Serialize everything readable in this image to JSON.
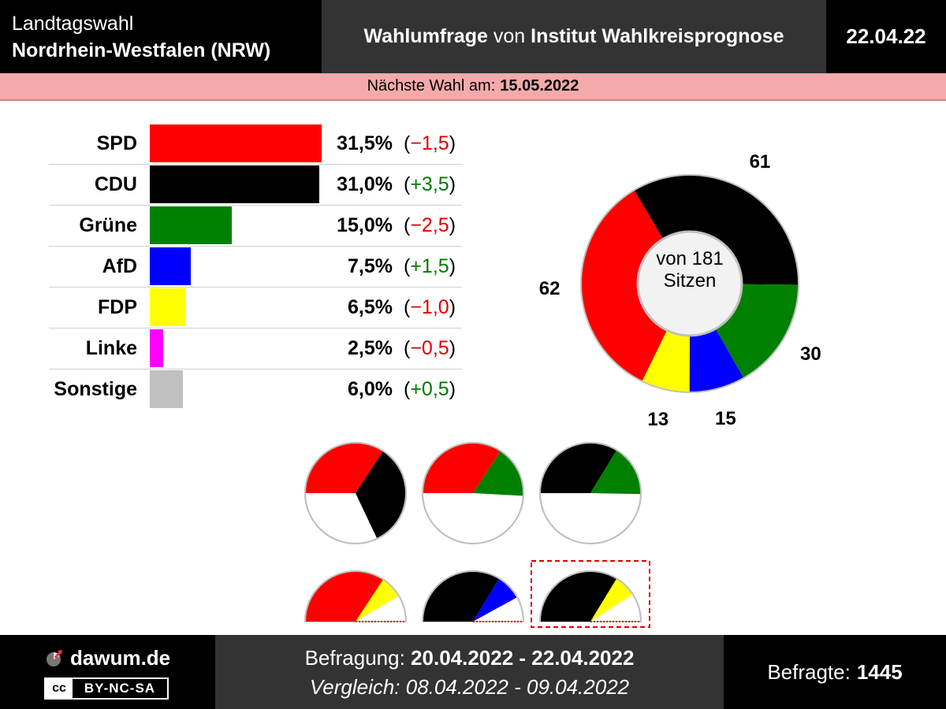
{
  "header": {
    "title_line1": "Landtagswahl",
    "title_line2": "Nordrhein-Westfalen (NRW)",
    "poll_bold1": "Wahlumfrage",
    "poll_connector": "von",
    "poll_bold2": "Institut Wahlkreisprognose",
    "date": "22.04.22"
  },
  "next_election": {
    "label": "Nächste Wahl am:",
    "date": "15.05.2022"
  },
  "chart_data": [
    {
      "type": "bar",
      "orientation": "horizontal",
      "categories": [
        "SPD",
        "CDU",
        "Grüne",
        "AfD",
        "FDP",
        "Linke",
        "Sonstige"
      ],
      "values": [
        31.5,
        31.0,
        15.0,
        7.5,
        6.5,
        2.5,
        6.0
      ],
      "value_labels": [
        "31,5%",
        "31,0%",
        "15,0%",
        "7,5%",
        "6,5%",
        "2,5%",
        "6,0%"
      ],
      "changes": [
        -1.5,
        3.5,
        -2.5,
        1.5,
        -1.0,
        -0.5,
        0.5
      ],
      "change_labels": [
        "−1,5",
        "+3,5",
        "−2,5",
        "+1,5",
        "−1,0",
        "−0,5",
        "+0,5"
      ],
      "colors": [
        "#ff0000",
        "#000000",
        "#008000",
        "#0000ff",
        "#ffff00",
        "#ff00ff",
        "#c0c0c0"
      ]
    },
    {
      "type": "pie",
      "subtype": "donut",
      "total_text_line1": "von 181",
      "total_text_line2": "Sitzen",
      "total": 181,
      "slices": [
        {
          "party": "SPD",
          "seats": 62,
          "color": "#ff0000"
        },
        {
          "party": "CDU",
          "seats": 61,
          "color": "#000000"
        },
        {
          "party": "Grüne",
          "seats": 30,
          "color": "#008000"
        },
        {
          "party": "AfD",
          "seats": 15,
          "color": "#0000ff"
        },
        {
          "party": "FDP",
          "seats": 13,
          "color": "#ffff00"
        }
      ]
    },
    {
      "type": "pie",
      "subtype": "coalition-semicircles",
      "coalitions": [
        {
          "parties": [
            "SPD",
            "CDU"
          ],
          "colors": [
            "#ff0000",
            "#000000"
          ],
          "seats": [
            62,
            61
          ],
          "highlighted": false
        },
        {
          "parties": [
            "SPD",
            "Grüne"
          ],
          "colors": [
            "#ff0000",
            "#008000"
          ],
          "seats": [
            62,
            30
          ],
          "highlighted": false
        },
        {
          "parties": [
            "CDU",
            "Grüne"
          ],
          "colors": [
            "#000000",
            "#008000"
          ],
          "seats": [
            61,
            30
          ],
          "highlighted": false
        },
        {
          "parties": [
            "SPD",
            "FDP"
          ],
          "colors": [
            "#ff0000",
            "#ffff00"
          ],
          "seats": [
            62,
            13
          ],
          "highlighted": false
        },
        {
          "parties": [
            "CDU",
            "AfD"
          ],
          "colors": [
            "#000000",
            "#0000ff"
          ],
          "seats": [
            61,
            15
          ],
          "highlighted": false
        },
        {
          "parties": [
            "CDU",
            "FDP"
          ],
          "colors": [
            "#000000",
            "#ffff00"
          ],
          "seats": [
            61,
            13
          ],
          "highlighted": true
        }
      ]
    }
  ],
  "footer": {
    "site": "dawum.de",
    "license_cc": "cc",
    "license": "BY-NC-SA",
    "survey_label": "Befragung:",
    "survey_period": "20.04.2022 - 22.04.2022",
    "compare_label": "Vergleich:",
    "compare_period": "08.04.2022 - 09.04.2022",
    "respondents_label": "Befragte:",
    "respondents": "1445"
  }
}
